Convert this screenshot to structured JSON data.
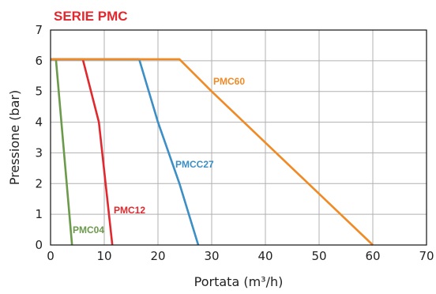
{
  "chart_data": {
    "type": "line",
    "title": "SERIE PMC",
    "title_color": "#e0282e",
    "xlabel": "Portata (m³/h)",
    "ylabel": "Pressione (bar)",
    "xlim": [
      0,
      70
    ],
    "ylim": [
      0,
      7
    ],
    "xticks": [
      0,
      10,
      20,
      30,
      40,
      50,
      60,
      70
    ],
    "yticks": [
      0,
      1,
      2,
      3,
      4,
      5,
      6,
      7
    ],
    "grid": true,
    "series": [
      {
        "name": "PMC04",
        "color": "#6a9a4a",
        "points": [
          [
            0,
            6.05
          ],
          [
            1,
            6.05
          ],
          [
            4,
            0
          ]
        ]
      },
      {
        "name": "PMC12",
        "color": "#e0282e",
        "points": [
          [
            0,
            6.05
          ],
          [
            6,
            6.05
          ],
          [
            9,
            4
          ],
          [
            11.5,
            0
          ]
        ]
      },
      {
        "name": "PMCC27",
        "color": "#3b8fc6",
        "points": [
          [
            0,
            6.05
          ],
          [
            16.5,
            6.05
          ],
          [
            20,
            4
          ],
          [
            24,
            2
          ],
          [
            27.5,
            0
          ]
        ]
      },
      {
        "name": "PMC60",
        "color": "#f08a24",
        "points": [
          [
            0,
            6.05
          ],
          [
            24,
            6.05
          ],
          [
            30,
            5
          ],
          [
            60,
            0
          ]
        ]
      }
    ]
  }
}
